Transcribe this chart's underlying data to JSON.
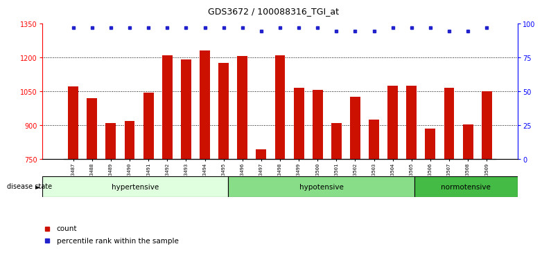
{
  "title": "GDS3672 / 100088316_TGI_at",
  "samples": [
    "GSM493487",
    "GSM493488",
    "GSM493489",
    "GSM493490",
    "GSM493491",
    "GSM493492",
    "GSM493493",
    "GSM493494",
    "GSM493495",
    "GSM493496",
    "GSM493497",
    "GSM493498",
    "GSM493499",
    "GSM493500",
    "GSM493501",
    "GSM493502",
    "GSM493503",
    "GSM493504",
    "GSM493505",
    "GSM493506",
    "GSM493507",
    "GSM493508",
    "GSM493509"
  ],
  "counts": [
    1072,
    1020,
    910,
    918,
    1045,
    1210,
    1190,
    1230,
    1175,
    1205,
    795,
    1210,
    1065,
    1055,
    910,
    1025,
    925,
    1075,
    1075,
    885,
    1067,
    905,
    1050
  ],
  "percentile_high": 1,
  "percentile_low_indices": [
    10,
    14,
    15,
    16,
    20,
    21
  ],
  "groups": [
    {
      "label": "hypertensive",
      "start": 0,
      "end": 9,
      "color": "#dfffdf"
    },
    {
      "label": "hypotensive",
      "start": 9,
      "end": 18,
      "color": "#88dd88"
    },
    {
      "label": "normotensive",
      "start": 18,
      "end": 23,
      "color": "#44bb44"
    }
  ],
  "bar_color": "#cc1100",
  "dot_color": "#2222cc",
  "ylim_left": [
    750,
    1350
  ],
  "ylim_right": [
    0,
    100
  ],
  "yticks_left": [
    750,
    900,
    1050,
    1200,
    1350
  ],
  "yticks_right": [
    0,
    25,
    50,
    75,
    100
  ],
  "background_color": "#ffffff",
  "xtick_bg": "#dddddd"
}
